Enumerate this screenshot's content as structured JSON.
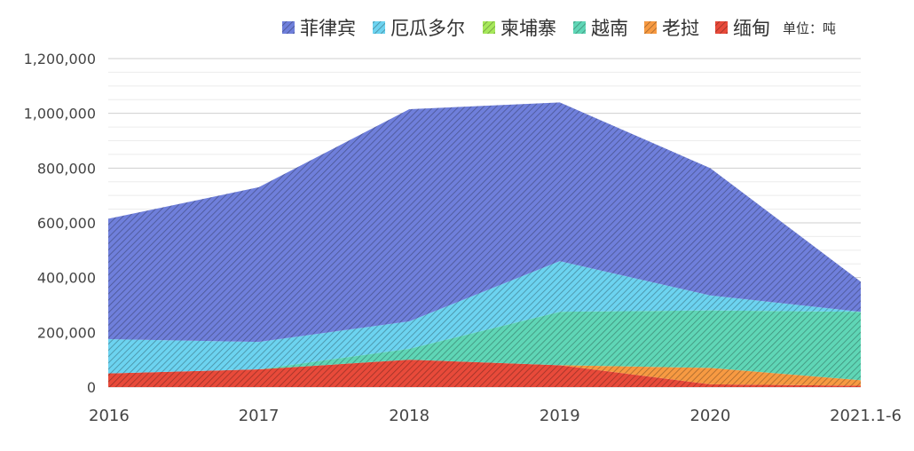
{
  "chart_data": {
    "type": "area",
    "stacked": true,
    "categories": [
      "2016",
      "2017",
      "2018",
      "2019",
      "2020",
      "2021.1-6"
    ],
    "ylim": [
      0,
      1200000
    ],
    "yticks": [
      0,
      200000,
      400000,
      600000,
      800000,
      1000000,
      1200000
    ],
    "ytick_labels": [
      "0",
      "200,000",
      "400,000",
      "600,000",
      "800,000",
      "1,000,000",
      "1,200,000"
    ],
    "unit": "单位：吨",
    "grid": true,
    "legend_position": "top",
    "series": [
      {
        "name": "缅甸",
        "color": "#e84a3a",
        "values": [
          50000,
          65000,
          100000,
          80000,
          10000,
          5000
        ]
      },
      {
        "name": "老挝",
        "color": "#f79a42",
        "values": [
          0,
          0,
          0,
          0,
          60000,
          20000
        ]
      },
      {
        "name": "越南",
        "color": "#5fd6b6",
        "values": [
          0,
          0,
          40000,
          195000,
          210000,
          250000
        ]
      },
      {
        "name": "柬埔寨",
        "color": "#a6e85a",
        "values": [
          0,
          0,
          0,
          0,
          0,
          0
        ]
      },
      {
        "name": "厄瓜多尔",
        "color": "#6cd3f0",
        "values": [
          125000,
          100000,
          100000,
          185000,
          55000,
          0
        ]
      },
      {
        "name": "菲律宾",
        "color": "#6f7fdb",
        "values": [
          440000,
          565000,
          775000,
          580000,
          465000,
          110000
        ]
      }
    ],
    "legend_order": [
      "菲律宾",
      "厄瓜多尔",
      "柬埔寨",
      "越南",
      "老挝",
      "缅甸"
    ]
  }
}
